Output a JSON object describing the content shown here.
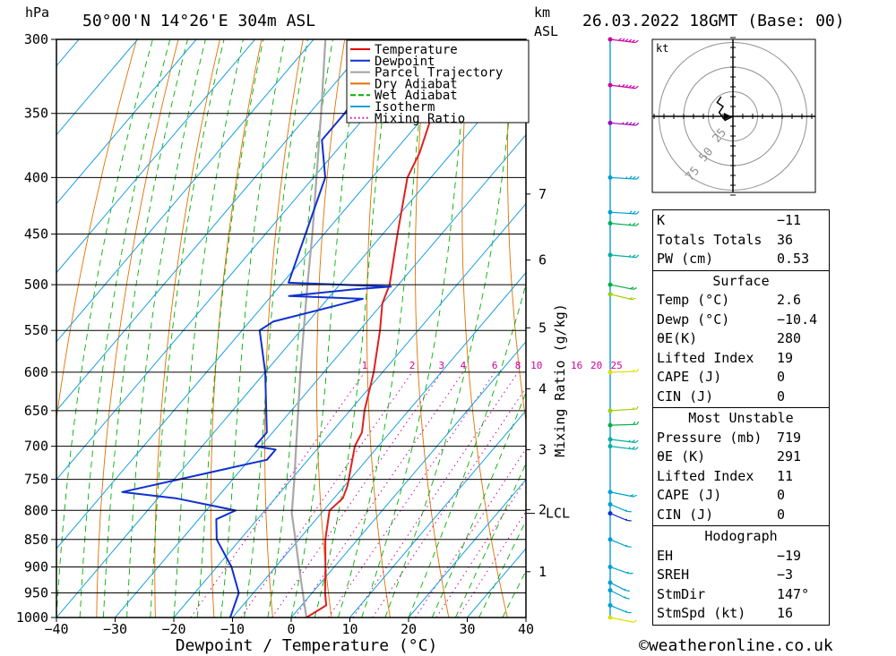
{
  "header": {
    "hpa_label": "hPa",
    "location": "50°00'N  14°26'E  304m  ASL",
    "km_label": "km",
    "asl_label": "ASL",
    "datetime": "26.03.2022  18GMT  (Base: 00)"
  },
  "footer": {
    "copyright": "©weatheronline.co.uk"
  },
  "chart_data": {
    "type": "skew-t",
    "xlabel": "Dewpoint / Temperature (°C)",
    "ylabel_right": "Mixing Ratio (g/kg)",
    "x_ticks": [
      -40,
      -30,
      -20,
      -10,
      0,
      10,
      20,
      30,
      40
    ],
    "x_tick_labels": [
      "−40",
      "−30",
      "−20",
      "−10",
      "0",
      "10",
      "20",
      "30",
      "40"
    ],
    "xlim": [
      -40,
      40
    ],
    "pressure_levels": [
      300,
      350,
      400,
      450,
      500,
      550,
      600,
      650,
      700,
      750,
      800,
      850,
      900,
      950,
      1000
    ],
    "ylim_hpa": [
      1000,
      300
    ],
    "km_ticks": [
      {
        "km": "1",
        "p": 909
      },
      {
        "km": "2",
        "p": 799
      },
      {
        "km": "3",
        "p": 705
      },
      {
        "km": "4",
        "p": 621
      },
      {
        "km": "5",
        "p": 547
      },
      {
        "km": "6",
        "p": 475
      },
      {
        "km": "7",
        "p": 414
      }
    ],
    "lcl": {
      "label": "LCL",
      "p": 805
    },
    "mixing_ratio_labels": [
      "1",
      "2",
      "3",
      "4",
      "6",
      "8",
      "10",
      "16",
      "20",
      "25"
    ],
    "legend": [
      {
        "label": "Temperature",
        "color": "#e00000",
        "style": "solid"
      },
      {
        "label": "Dewpoint",
        "color": "#1030d0",
        "style": "solid"
      },
      {
        "label": "Parcel Trajectory",
        "color": "#a0a0a0",
        "style": "solid"
      },
      {
        "label": "Dry Adiabat",
        "color": "#e07000",
        "style": "solid"
      },
      {
        "label": "Wet Adiabat",
        "color": "#00b000",
        "style": "dashed"
      },
      {
        "label": "Isotherm",
        "color": "#1aa0e0",
        "style": "solid"
      },
      {
        "label": "Mixing Ratio",
        "color": "#d0009a",
        "style": "dotted"
      }
    ],
    "temperature": [
      {
        "p": 1000,
        "t": 2.6
      },
      {
        "p": 975,
        "t": 4.2
      },
      {
        "p": 950,
        "t": 2.2
      },
      {
        "p": 900,
        "t": -1.5
      },
      {
        "p": 850,
        "t": -5.5
      },
      {
        "p": 800,
        "t": -9.0
      },
      {
        "p": 780,
        "t": -8.5
      },
      {
        "p": 760,
        "t": -9.5
      },
      {
        "p": 700,
        "t": -14.0
      },
      {
        "p": 680,
        "t": -14.8
      },
      {
        "p": 650,
        "t": -17.5
      },
      {
        "p": 600,
        "t": -21.5
      },
      {
        "p": 550,
        "t": -26.5
      },
      {
        "p": 520,
        "t": -30.0
      },
      {
        "p": 500,
        "t": -31.5
      },
      {
        "p": 450,
        "t": -37.5
      },
      {
        "p": 400,
        "t": -44.0
      },
      {
        "p": 380,
        "t": -45.5
      },
      {
        "p": 350,
        "t": -49.0
      },
      {
        "p": 300,
        "t": -58.0
      }
    ],
    "dewpoint": [
      {
        "p": 1000,
        "t": -10.4
      },
      {
        "p": 950,
        "t": -12.5
      },
      {
        "p": 900,
        "t": -17.5
      },
      {
        "p": 850,
        "t": -24.0
      },
      {
        "p": 815,
        "t": -27.0
      },
      {
        "p": 800,
        "t": -25.0
      },
      {
        "p": 780,
        "t": -37.0
      },
      {
        "p": 770,
        "t": -47.0
      },
      {
        "p": 720,
        "t": -27.0
      },
      {
        "p": 705,
        "t": -27.0
      },
      {
        "p": 700,
        "t": -31.0
      },
      {
        "p": 680,
        "t": -31.0
      },
      {
        "p": 600,
        "t": -40.0
      },
      {
        "p": 550,
        "t": -47.0
      },
      {
        "p": 540,
        "t": -46.0
      },
      {
        "p": 515,
        "t": -34.0
      },
      {
        "p": 512,
        "t": -47.0
      },
      {
        "p": 505,
        "t": -37.0
      },
      {
        "p": 502,
        "t": -31.0
      },
      {
        "p": 498,
        "t": -49.0
      },
      {
        "p": 400,
        "t": -58.0
      },
      {
        "p": 370,
        "t": -64.0
      },
      {
        "p": 350,
        "t": -64.0
      },
      {
        "p": 300,
        "t": -66.0
      }
    ],
    "parcel": [
      {
        "p": 1000,
        "t": 2.6
      },
      {
        "p": 950,
        "t": -1.6
      },
      {
        "p": 900,
        "t": -6.0
      },
      {
        "p": 850,
        "t": -10.6
      },
      {
        "p": 805,
        "t": -15.0
      },
      {
        "p": 750,
        "t": -19.5
      },
      {
        "p": 700,
        "t": -24.0
      },
      {
        "p": 650,
        "t": -28.8
      },
      {
        "p": 600,
        "t": -34.0
      },
      {
        "p": 550,
        "t": -39.5
      },
      {
        "p": 500,
        "t": -45.5
      },
      {
        "p": 450,
        "t": -52.0
      },
      {
        "p": 400,
        "t": -59.5
      },
      {
        "p": 350,
        "t": -68.0
      },
      {
        "p": 300,
        "t": -78.0
      }
    ],
    "wind_profile": [
      {
        "p": 300,
        "dir": 290,
        "kt": 60,
        "color": "#d000a0"
      },
      {
        "p": 330,
        "dir": 290,
        "kt": 55,
        "color": "#d000a0"
      },
      {
        "p": 357,
        "dir": 285,
        "kt": 45,
        "color": "#a000c0"
      },
      {
        "p": 400,
        "dir": 280,
        "kt": 35,
        "color": "#00a0d0"
      },
      {
        "p": 430,
        "dir": 280,
        "kt": 30,
        "color": "#00a0d0"
      },
      {
        "p": 440,
        "dir": 285,
        "kt": 25,
        "color": "#00b050"
      },
      {
        "p": 470,
        "dir": 285,
        "kt": 25,
        "color": "#00b0a0"
      },
      {
        "p": 500,
        "dir": 300,
        "kt": 20,
        "color": "#00b040"
      },
      {
        "p": 510,
        "dir": 305,
        "kt": 20,
        "color": "#a0d000"
      },
      {
        "p": 600,
        "dir": 265,
        "kt": 15,
        "color": "#e0e000"
      },
      {
        "p": 650,
        "dir": 260,
        "kt": 15,
        "color": "#a0d000"
      },
      {
        "p": 670,
        "dir": 265,
        "kt": 20,
        "color": "#00b040"
      },
      {
        "p": 690,
        "dir": 290,
        "kt": 25,
        "color": "#00b0a0"
      },
      {
        "p": 700,
        "dir": 290,
        "kt": 25,
        "color": "#00b0a0"
      },
      {
        "p": 770,
        "dir": 300,
        "kt": 20,
        "color": "#00a0d0"
      },
      {
        "p": 790,
        "dir": 320,
        "kt": 15,
        "color": "#00a0d0"
      },
      {
        "p": 805,
        "dir": 320,
        "kt": 15,
        "color": "#1030d0"
      },
      {
        "p": 850,
        "dir": 320,
        "kt": 15,
        "color": "#00a0d0"
      },
      {
        "p": 900,
        "dir": 315,
        "kt": 15,
        "color": "#00a0d0"
      },
      {
        "p": 930,
        "dir": 325,
        "kt": 15,
        "color": "#00a0d0"
      },
      {
        "p": 945,
        "dir": 325,
        "kt": 15,
        "color": "#00a0d0"
      },
      {
        "p": 975,
        "dir": 320,
        "kt": 15,
        "color": "#00a0d0"
      },
      {
        "p": 1000,
        "dir": 300,
        "kt": 10,
        "color": "#e0e000"
      }
    ],
    "hodograph": {
      "unit_label": "kt",
      "ring_labels": [
        "25",
        "50",
        "75"
      ],
      "points_kt": [
        [
          0,
          0
        ],
        [
          -4,
          -2
        ],
        [
          -7,
          2
        ],
        [
          -5,
          5
        ],
        [
          -8,
          7
        ],
        [
          -6,
          10
        ]
      ]
    }
  },
  "stats": {
    "indices": [
      {
        "label": "K",
        "value": "−11"
      },
      {
        "label": "Totals Totals",
        "value": "36"
      },
      {
        "label": "PW (cm)",
        "value": "0.53"
      }
    ],
    "surface": {
      "title": "Surface",
      "rows": [
        {
          "label": "Temp (°C)",
          "value": "2.6"
        },
        {
          "label": "Dewp (°C)",
          "value": "−10.4"
        },
        {
          "label": "θE(K)",
          "value": "280"
        },
        {
          "label": "Lifted Index",
          "value": "19"
        },
        {
          "label": "CAPE (J)",
          "value": "0"
        },
        {
          "label": "CIN (J)",
          "value": "0"
        }
      ]
    },
    "most_unstable": {
      "title": "Most Unstable",
      "rows": [
        {
          "label": "Pressure (mb)",
          "value": "719"
        },
        {
          "label": "θE (K)",
          "value": "291"
        },
        {
          "label": "Lifted Index",
          "value": "11"
        },
        {
          "label": "CAPE (J)",
          "value": "0"
        },
        {
          "label": "CIN (J)",
          "value": "0"
        }
      ]
    },
    "hodograph": {
      "title": "Hodograph",
      "rows": [
        {
          "label": "EH",
          "value": "−19"
        },
        {
          "label": "SREH",
          "value": "−3"
        },
        {
          "label": "StmDir",
          "value": "147°"
        },
        {
          "label": "StmSpd (kt)",
          "value": "16"
        }
      ]
    }
  }
}
